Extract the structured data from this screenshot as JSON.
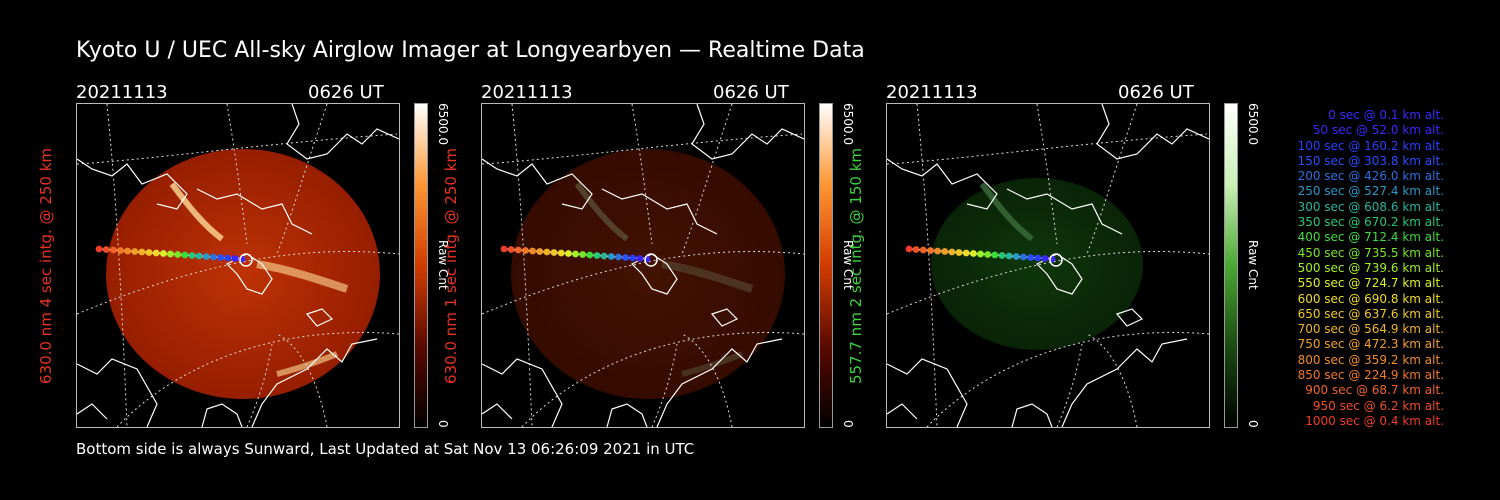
{
  "title": "Kyoto U / UEC All-sky Airglow Imager at Longyearbyen — Realtime Data",
  "footer": "Bottom side is always Sunward, Last Updated at Sat Nov 13 06:26:09 2021 in UTC",
  "panels": [
    {
      "date": "20211113",
      "time": "0626 UT",
      "ylabel": "630.0 nm 4 sec intg. @ 250 km",
      "label_color": "#e8321e",
      "cbar_max": "6500.0",
      "cbar_label": "Raw Cnt",
      "cbar_min": "0",
      "colormap": "red",
      "brightness": 1.0
    },
    {
      "date": "20211113",
      "time": "0626 UT",
      "ylabel": "630.0 nm 1 sec intg. @ 250 km",
      "label_color": "#e8321e",
      "cbar_max": "6500.0",
      "cbar_label": "Raw Cnt",
      "cbar_min": "0",
      "colormap": "red",
      "brightness": 0.35
    },
    {
      "date": "20211113",
      "time": "0626 UT",
      "ylabel": "557.7 nm 2 sec intg. @ 150 km",
      "label_color": "#3cd23c",
      "cbar_max": "6500.0",
      "cbar_label": "Raw Cnt",
      "cbar_min": "0",
      "colormap": "green",
      "brightness": 0.5
    }
  ],
  "legend": [
    {
      "text": "0 sec @   0.1 km alt.",
      "color": "#3c28ff"
    },
    {
      "text": "50 sec @  52.0 km alt.",
      "color": "#3c28ff"
    },
    {
      "text": "100 sec @ 160.2 km alt.",
      "color": "#2840ff"
    },
    {
      "text": "150 sec @ 303.8 km alt.",
      "color": "#2850ff"
    },
    {
      "text": "200 sec @ 426.0 km alt.",
      "color": "#2870e0"
    },
    {
      "text": "250 sec @ 527.4 km alt.",
      "color": "#2898c8"
    },
    {
      "text": "300 sec @ 608.6 km alt.",
      "color": "#28b4a0"
    },
    {
      "text": "350 sec @ 670.2 km alt.",
      "color": "#28c878"
    },
    {
      "text": "400 sec @ 712.4 km alt.",
      "color": "#3cdc3c"
    },
    {
      "text": "450 sec @ 735.5 km alt.",
      "color": "#78e628"
    },
    {
      "text": "500 sec @ 739.6 km alt.",
      "color": "#a0f028"
    },
    {
      "text": "550 sec @ 724.7 km alt.",
      "color": "#dcf028"
    },
    {
      "text": "600 sec @ 690.8 km alt.",
      "color": "#f0dc28"
    },
    {
      "text": "650 sec @ 637.6 km alt.",
      "color": "#f0c828"
    },
    {
      "text": "700 sec @ 564.9 km alt.",
      "color": "#f0b428"
    },
    {
      "text": "750 sec @ 472.3 km alt.",
      "color": "#f0a028"
    },
    {
      "text": "800 sec @ 359.2 km alt.",
      "color": "#f08c28"
    },
    {
      "text": "850 sec @ 224.9 km alt.",
      "color": "#f07828"
    },
    {
      "text": "900 sec @  68.7 km alt.",
      "color": "#f06428"
    },
    {
      "text": "950 sec @   6.2 km alt.",
      "color": "#f05028"
    },
    {
      "text": "1000 sec @   0.4 km alt.",
      "color": "#f03c28"
    }
  ]
}
